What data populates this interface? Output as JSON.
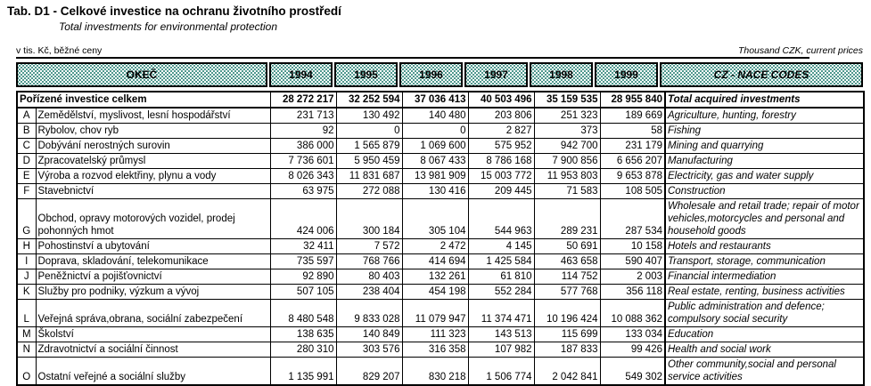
{
  "header": {
    "title": "Tab. D1 - Celkové investice na ochranu životního prostředí",
    "subtitle": "Total investments for environmental protection",
    "unit_left": "v tis. Kč, běžné ceny",
    "unit_right": "Thousand CZK, current prices"
  },
  "table": {
    "columns": [
      "OKEČ",
      "1994",
      "1995",
      "1996",
      "1997",
      "1998",
      "1999",
      "CZ - NACE CODES"
    ],
    "total_row": {
      "czech": "Pořízené investice celkem",
      "values": [
        "28 272 217",
        "32 252 594",
        "37 036 413",
        "40 503 496",
        "35 159 535",
        "28 955 840"
      ],
      "english": "Total acquired investments"
    },
    "rows": [
      {
        "code": "A",
        "czech": "Zemědělství, myslivost, lesní hospodářství",
        "values": [
          "231 713",
          "130 492",
          "140 480",
          "203 806",
          "251 323",
          "189 669"
        ],
        "english": "Agriculture, hunting, forestry"
      },
      {
        "code": "B",
        "czech": "Rybolov, chov ryb",
        "values": [
          "92",
          "0",
          "0",
          "2 827",
          "373",
          "58"
        ],
        "english": "Fishing"
      },
      {
        "code": "C",
        "czech": "Dobývání nerostných surovin",
        "values": [
          "386 000",
          "1 565 879",
          "1 069 600",
          "575 952",
          "942 700",
          "231 179"
        ],
        "english": "Mining and quarrying"
      },
      {
        "code": "D",
        "czech": "Zpracovatelský průmysl",
        "values": [
          "7 736 601",
          "5 950 459",
          "8 067 433",
          "8 786 168",
          "7 900 856",
          "6 656 207"
        ],
        "english": "Manufacturing"
      },
      {
        "code": "E",
        "czech": "Výroba a rozvod elektřiny, plynu a vody",
        "values": [
          "8 026 343",
          "11 831 687",
          "13 981 909",
          "15 003 772",
          "11 953 803",
          "9 653 878"
        ],
        "english": "Electricity, gas and water supply"
      },
      {
        "code": "F",
        "czech": "Stavebnictví",
        "values": [
          "63 975",
          "272 088",
          "130 416",
          "209 445",
          "71 583",
          "108 505"
        ],
        "english": "Construction"
      },
      {
        "code": "G",
        "czech": "Obchod, opravy motorových vozidel, prodej pohonných hmot",
        "values": [
          "424 006",
          "300 184",
          "305 104",
          "544 963",
          "289 231",
          "287 534"
        ],
        "english": "Wholesale and retail trade; repair of motor vehicles,motorcycles and personal and household goods"
      },
      {
        "code": "H",
        "czech": "Pohostinství a ubytování",
        "values": [
          "32 411",
          "7 572",
          "2 472",
          "4 145",
          "50 691",
          "10 158"
        ],
        "english": "Hotels and restaurants"
      },
      {
        "code": "I",
        "czech": "Doprava, skladování, telekomunikace",
        "values": [
          "735 597",
          "768 766",
          "414 694",
          "1 425 584",
          "463 658",
          "590 407"
        ],
        "english": "Transport, storage, communication"
      },
      {
        "code": "J",
        "czech": "Peněžnictví a pojišťovnictví",
        "values": [
          "92 890",
          "80 403",
          "132 261",
          "61 810",
          "114 752",
          "2 003"
        ],
        "english": "Financial intermediation"
      },
      {
        "code": "K",
        "czech": "Služby pro podniky, výzkum a vývoj",
        "values": [
          "507 105",
          "238 404",
          "454 198",
          "552 284",
          "577 768",
          "356 118"
        ],
        "english": "Real estate, renting, business activities"
      },
      {
        "code": "L",
        "czech": "Veřejná správa,obrana, sociální zabezpečení",
        "values": [
          "8 480 548",
          "9 833 028",
          "11 079 947",
          "11 374 471",
          "10 196 424",
          "10 088 362"
        ],
        "english": "Public administration and defence; compulsory social security"
      },
      {
        "code": "M",
        "czech": "Školství",
        "values": [
          "138 635",
          "140 849",
          "111 323",
          "143 513",
          "115 699",
          "133 034"
        ],
        "english": "Education"
      },
      {
        "code": "N",
        "czech": "Zdravotnictví a sociální činnost",
        "values": [
          "280 310",
          "303 576",
          "316 358",
          "107 982",
          "187 833",
          "99 426"
        ],
        "english": "Health and social work"
      },
      {
        "code": "O",
        "czech": "Ostatní veřejné a sociální služby",
        "values": [
          "1 135 991",
          "829 207",
          "830 218",
          "1 506 774",
          "2 042 841",
          "549 302"
        ],
        "english": "Other community,social and personal service activities"
      }
    ]
  },
  "colors": {
    "header_dot": "#147567",
    "border": "#000000",
    "background": "#ffffff"
  }
}
